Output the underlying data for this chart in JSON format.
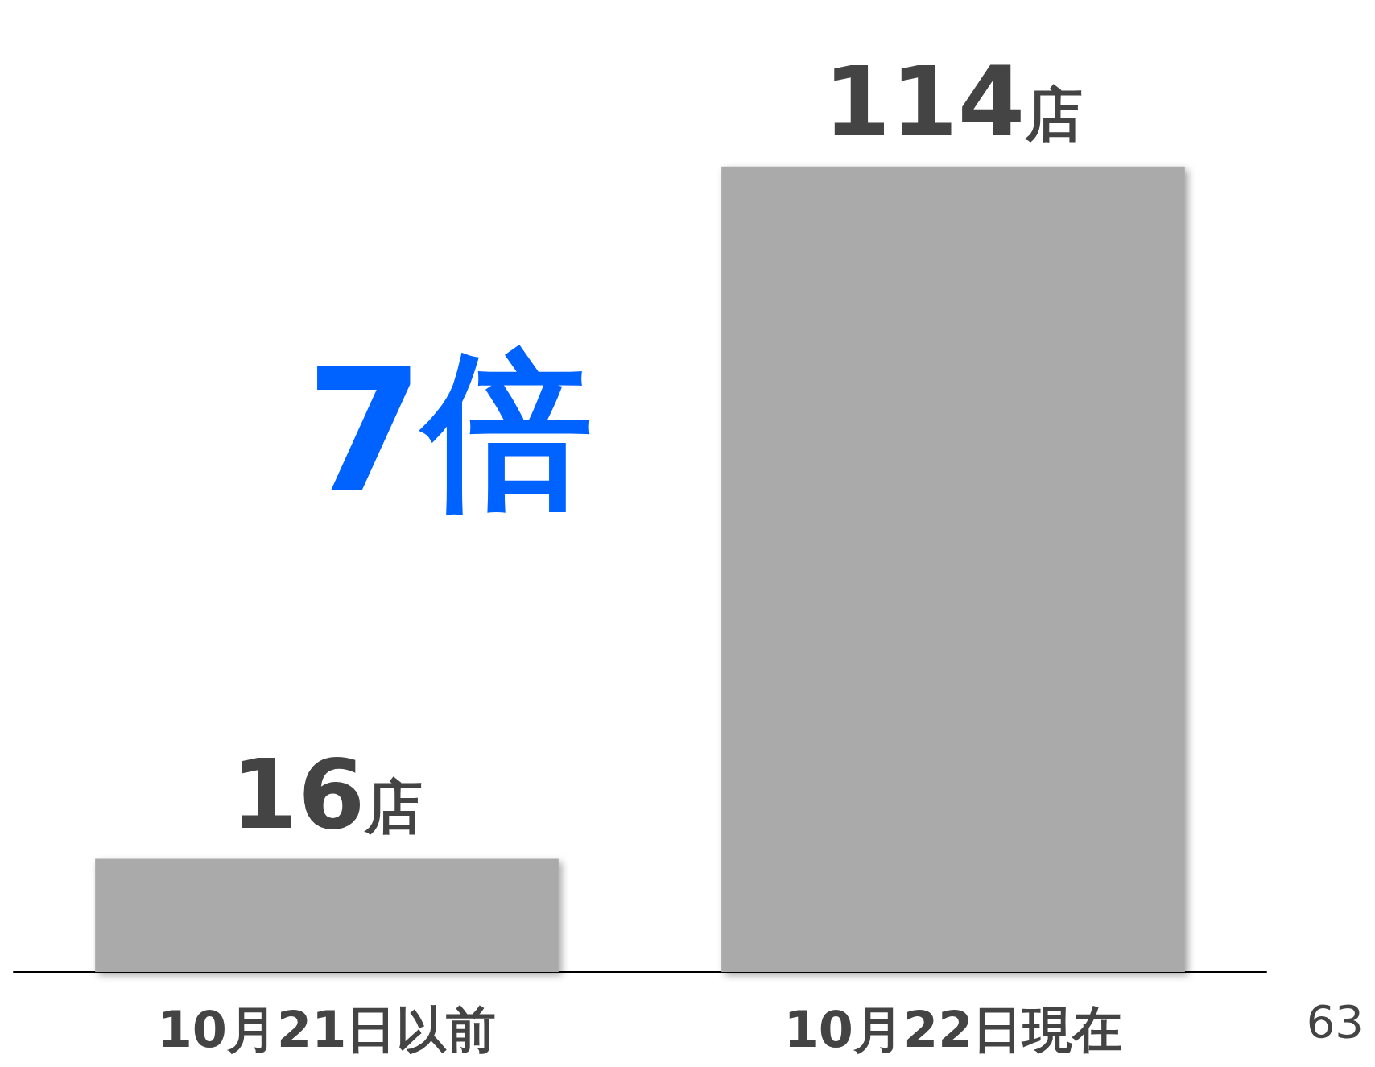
{
  "chart_data": {
    "type": "bar",
    "categories": [
      "10月21日以前",
      "10月22日現在"
    ],
    "values": [
      16,
      114
    ],
    "value_labels": [
      "16店",
      "114店"
    ],
    "color": "#aaaaaa",
    "annotations": [
      "7倍",
      "63"
    ]
  }
}
